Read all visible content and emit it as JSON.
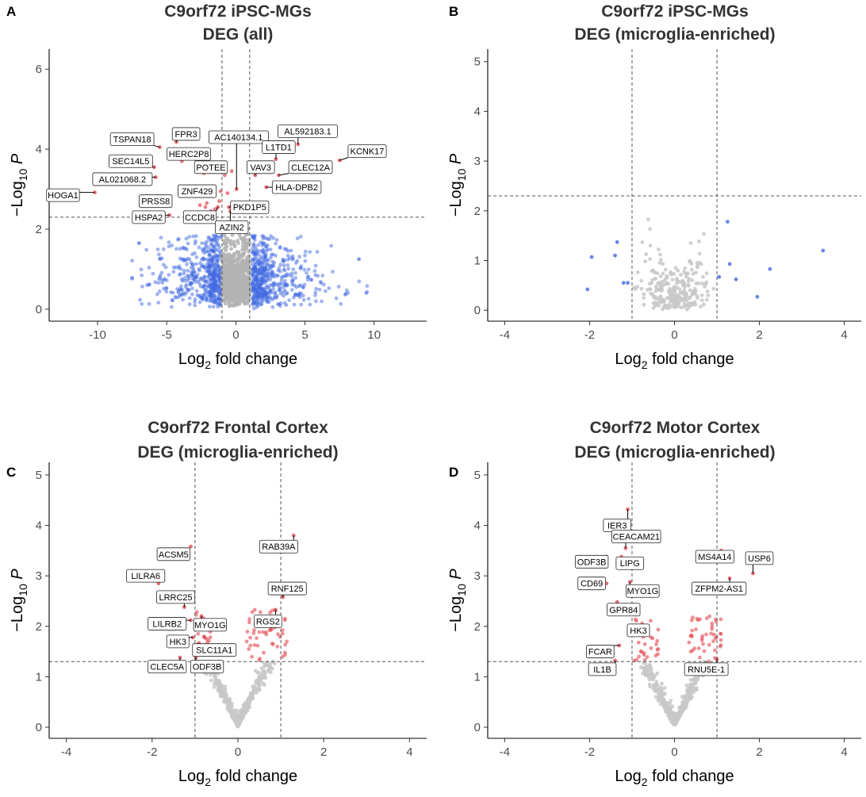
{
  "chart_data": [
    {
      "panel": "A",
      "type": "scatter",
      "title": [
        "C9orf72 iPSC-MGs",
        "DEG (all)"
      ],
      "xlabel": "Log2 fold change",
      "ylabel": "-Log10 P",
      "xlim": [
        -13.5,
        13.8
      ],
      "ylim": [
        -0.3,
        6.5
      ],
      "xticks": [
        -10,
        -5,
        0,
        5,
        10
      ],
      "yticks": [
        0,
        2,
        4,
        6
      ],
      "fc_cutoffs": [
        -1,
        1
      ],
      "p_cutoff": 2.3,
      "colors": {
        "grey": "#b3b3b3",
        "blue": "#4169e1",
        "red": "#e34850"
      },
      "genes": [
        {
          "name": "TSPAN18",
          "x": -5.5,
          "y": 4.05,
          "lx": -7.5,
          "ly": 4.25
        },
        {
          "name": "FPR3",
          "x": -4.3,
          "y": 4.18,
          "lx": -3.6,
          "ly": 4.38
        },
        {
          "name": "HERC2P8",
          "x": -3.9,
          "y": 3.7,
          "lx": -3.4,
          "ly": 3.88
        },
        {
          "name": "SEC14L5",
          "x": -5.9,
          "y": 3.55,
          "lx": -7.6,
          "ly": 3.7
        },
        {
          "name": "AL021068.2",
          "x": -5.8,
          "y": 3.3,
          "lx": -8.2,
          "ly": 3.25
        },
        {
          "name": "HOGA1",
          "x": -10.2,
          "y": 2.92,
          "lx": -12.5,
          "ly": 2.85
        },
        {
          "name": "POTEE",
          "x": -2.3,
          "y": 3.4,
          "lx": -1.8,
          "ly": 3.55
        },
        {
          "name": "AC140134.1",
          "x": 0.05,
          "y": 3.0,
          "lx": 0.2,
          "ly": 4.3
        },
        {
          "name": "ZNF429",
          "x": -2.5,
          "y": 2.95,
          "lx": -2.8,
          "ly": 2.95
        },
        {
          "name": "PRSS8",
          "x": -5.3,
          "y": 2.8,
          "lx": -5.8,
          "ly": 2.7
        },
        {
          "name": "HSPA2",
          "x": -4.8,
          "y": 2.35,
          "lx": -6.3,
          "ly": 2.3
        },
        {
          "name": "CCDC8",
          "x": -1.3,
          "y": 2.55,
          "lx": -2.6,
          "ly": 2.3
        },
        {
          "name": "PKD1P5",
          "x": -0.5,
          "y": 2.55,
          "lx": 1.0,
          "ly": 2.55
        },
        {
          "name": "AZIN2",
          "x": -0.4,
          "y": 2.45,
          "lx": -0.3,
          "ly": 2.05
        },
        {
          "name": "AL592183.1",
          "x": 4.5,
          "y": 4.12,
          "lx": 5.2,
          "ly": 4.45
        },
        {
          "name": "L1TD1",
          "x": 2.9,
          "y": 3.75,
          "lx": 3.1,
          "ly": 4.05
        },
        {
          "name": "KCNK17",
          "x": 7.5,
          "y": 3.72,
          "lx": 9.5,
          "ly": 3.95
        },
        {
          "name": "VAV3",
          "x": 1.4,
          "y": 3.35,
          "lx": 1.8,
          "ly": 3.55
        },
        {
          "name": "CLEC12A",
          "x": 3.1,
          "y": 3.35,
          "lx": 5.4,
          "ly": 3.55
        },
        {
          "name": "HLA-DPB2",
          "x": 2.2,
          "y": 3.05,
          "lx": 4.4,
          "ly": 3.05
        }
      ]
    },
    {
      "panel": "B",
      "type": "scatter",
      "title": [
        "C9orf72 iPSC-MGs",
        "DEG (microglia-enriched)"
      ],
      "xlabel": "Log2 fold change",
      "ylabel": "-Log10 P",
      "xlim": [
        -4.4,
        4.4
      ],
      "ylim": [
        -0.22,
        5.25
      ],
      "xticks": [
        -4,
        -2,
        0,
        2,
        4
      ],
      "yticks": [
        0,
        1,
        2,
        3,
        4,
        5
      ],
      "fc_cutoffs": [
        -1,
        1
      ],
      "p_cutoff": 2.3,
      "colors": {
        "grey": "#c8c8c8",
        "blue": "#4169e1",
        "red": "#e34850"
      },
      "genes": [],
      "blue_points": [
        [
          -1.95,
          1.07
        ],
        [
          -1.35,
          1.37
        ],
        [
          -1.2,
          0.55
        ],
        [
          -2.05,
          0.42
        ],
        [
          -1.4,
          1.1
        ],
        [
          -1.1,
          0.55
        ],
        [
          1.25,
          1.78
        ],
        [
          1.3,
          0.93
        ],
        [
          1.45,
          0.62
        ],
        [
          2.25,
          0.83
        ],
        [
          1.95,
          0.27
        ],
        [
          3.5,
          1.2
        ],
        [
          1.05,
          0.67
        ]
      ]
    },
    {
      "panel": "C",
      "type": "scatter",
      "title": [
        "C9orf72 Frontal Cortex",
        "DEG (microglia-enriched)"
      ],
      "xlabel": "Log2 fold change",
      "ylabel": "-Log10 P",
      "xlim": [
        -4.4,
        4.4
      ],
      "ylim": [
        -0.22,
        5.25
      ],
      "xticks": [
        -4,
        -2,
        0,
        2,
        4
      ],
      "yticks": [
        0,
        1,
        2,
        3,
        4,
        5
      ],
      "fc_cutoffs": [
        -1,
        1
      ],
      "p_cutoff": 1.3,
      "colors": {
        "grey": "#c8c8c8",
        "blue": "#4169e1",
        "red": "#e34850"
      },
      "genes": [
        {
          "name": "ACSM5",
          "x": -1.1,
          "y": 3.58,
          "lx": -1.5,
          "ly": 3.43
        },
        {
          "name": "LILRA6",
          "x": -1.85,
          "y": 2.85,
          "lx": -2.15,
          "ly": 3.0
        },
        {
          "name": "LRRC25",
          "x": -1.25,
          "y": 2.38,
          "lx": -1.45,
          "ly": 2.58
        },
        {
          "name": "LILRB2",
          "x": -1.1,
          "y": 2.12,
          "lx": -1.65,
          "ly": 2.05
        },
        {
          "name": "MYO1G",
          "x": -0.85,
          "y": 2.2,
          "lx": -0.65,
          "ly": 2.03
        },
        {
          "name": "HK3",
          "x": -1.05,
          "y": 1.78,
          "lx": -1.4,
          "ly": 1.7
        },
        {
          "name": "SLC11A1",
          "x": -0.92,
          "y": 1.65,
          "lx": -0.55,
          "ly": 1.53
        },
        {
          "name": "CLEC5A",
          "x": -1.35,
          "y": 1.38,
          "lx": -1.65,
          "ly": 1.2
        },
        {
          "name": "ODF3B",
          "x": -0.98,
          "y": 1.38,
          "lx": -0.72,
          "ly": 1.2
        },
        {
          "name": "RAB39A",
          "x": 1.3,
          "y": 3.8,
          "lx": 0.95,
          "ly": 3.58
        },
        {
          "name": "RNF125",
          "x": 1.05,
          "y": 2.58,
          "lx": 1.15,
          "ly": 2.75
        },
        {
          "name": "RGS2",
          "x": 0.88,
          "y": 2.32,
          "lx": 0.7,
          "ly": 2.1
        }
      ]
    },
    {
      "panel": "D",
      "type": "scatter",
      "title": [
        "C9orf72 Motor Cortex",
        "DEG (microglia-enriched)"
      ],
      "xlabel": "Log2 fold change",
      "ylabel": "-Log10 P",
      "xlim": [
        -4.4,
        4.4
      ],
      "ylim": [
        -0.22,
        5.25
      ],
      "xticks": [
        -4,
        -2,
        0,
        2,
        4
      ],
      "yticks": [
        0,
        1,
        2,
        3,
        4,
        5
      ],
      "fc_cutoffs": [
        -1,
        1
      ],
      "p_cutoff": 1.3,
      "colors": {
        "grey": "#c8c8c8",
        "blue": "#4169e1",
        "red": "#e34850"
      },
      "genes": [
        {
          "name": "IER3",
          "x": -1.1,
          "y": 4.32,
          "lx": -1.35,
          "ly": 4.0
        },
        {
          "name": "CEACAM21",
          "x": -1.15,
          "y": 3.55,
          "lx": -0.9,
          "ly": 3.78
        },
        {
          "name": "ODF3B",
          "x": -1.6,
          "y": 3.38,
          "lx": -1.95,
          "ly": 3.28
        },
        {
          "name": "LIPG",
          "x": -1.25,
          "y": 3.38,
          "lx": -1.05,
          "ly": 3.25
        },
        {
          "name": "CD69",
          "x": -1.6,
          "y": 2.85,
          "lx": -1.95,
          "ly": 2.85
        },
        {
          "name": "MYO1G",
          "x": -1.05,
          "y": 2.88,
          "lx": -0.75,
          "ly": 2.7
        },
        {
          "name": "GPR84",
          "x": -1.35,
          "y": 2.48,
          "lx": -1.2,
          "ly": 2.33
        },
        {
          "name": "HK3",
          "x": -1.05,
          "y": 1.92,
          "lx": -0.85,
          "ly": 1.92
        },
        {
          "name": "FCAR",
          "x": -1.3,
          "y": 1.62,
          "lx": -1.75,
          "ly": 1.5
        },
        {
          "name": "IL1B",
          "x": -1.4,
          "y": 1.32,
          "lx": -1.7,
          "ly": 1.15
        },
        {
          "name": "MS4A14",
          "x": 1.1,
          "y": 3.5,
          "lx": 0.95,
          "ly": 3.38
        },
        {
          "name": "USP6",
          "x": 1.85,
          "y": 3.05,
          "lx": 2.0,
          "ly": 3.35
        },
        {
          "name": "ZFPM2-AS1",
          "x": 1.3,
          "y": 2.95,
          "lx": 1.05,
          "ly": 2.75
        },
        {
          "name": "RNU5E-1",
          "x": 1.0,
          "y": 1.35,
          "lx": 0.75,
          "ly": 1.15
        }
      ]
    }
  ]
}
